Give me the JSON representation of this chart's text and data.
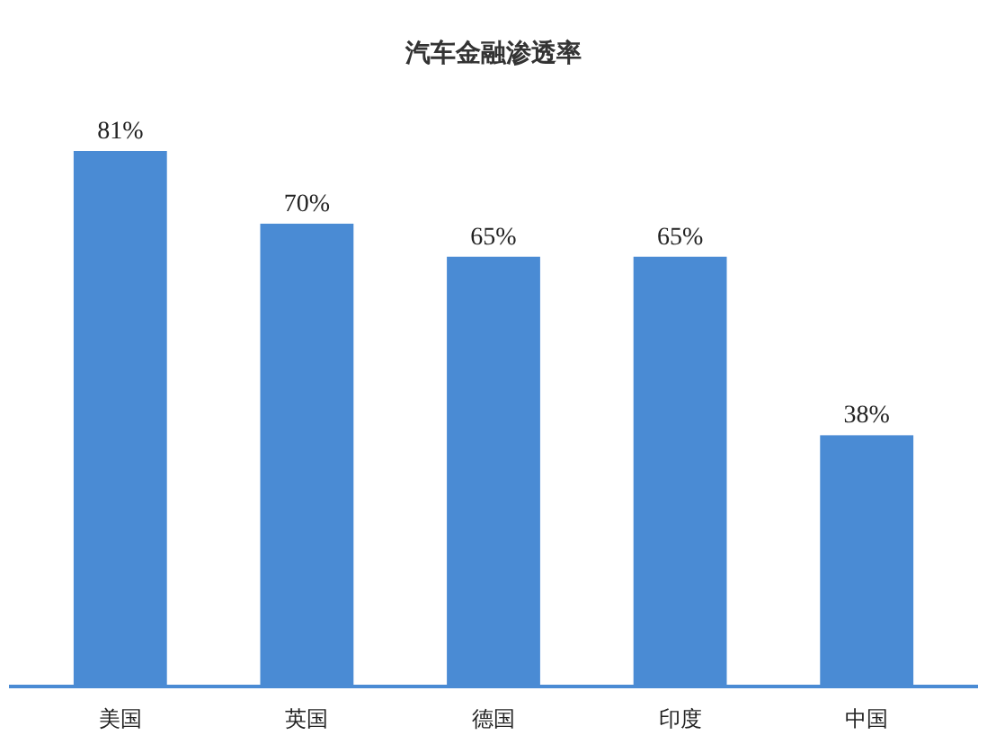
{
  "chart_data": {
    "type": "bar",
    "title": "汽车金融渗透率",
    "categories": [
      "美国",
      "英国",
      "德国",
      "印度",
      "中国"
    ],
    "values": [
      81,
      70,
      65,
      65,
      38
    ],
    "value_labels": [
      "81%",
      "70%",
      "65%",
      "65%",
      "38%"
    ],
    "color": "#4a8bd4"
  }
}
